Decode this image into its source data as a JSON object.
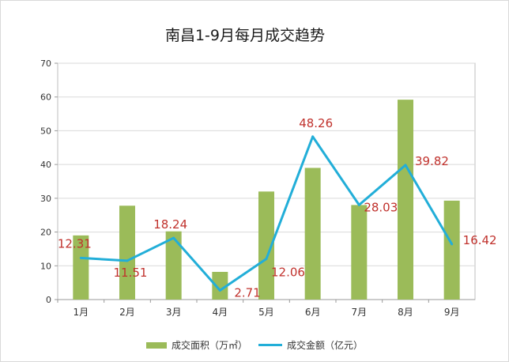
{
  "chart_data": {
    "type": "bar",
    "title": "南昌1-9月每月成交趋势",
    "categories": [
      "1月",
      "2月",
      "3月",
      "4月",
      "5月",
      "6月",
      "7月",
      "8月",
      "9月"
    ],
    "ylim": [
      0,
      70
    ],
    "yticks": [
      "0",
      "10",
      "20",
      "30",
      "40",
      "50",
      "60",
      "70"
    ],
    "grid": true,
    "legend_position": "bottom",
    "series": [
      {
        "name": "成交面积（万㎡）",
        "type": "bar",
        "color": "#9bbb59",
        "values": [
          19,
          27.8,
          20.2,
          8.2,
          32,
          39,
          28,
          59.2,
          29.3
        ]
      },
      {
        "name": "成交金额（亿元）",
        "type": "line",
        "color": "#22aed8",
        "values": [
          12.31,
          11.51,
          18.24,
          2.71,
          12.06,
          48.26,
          28.03,
          39.82,
          16.42
        ],
        "data_labels": [
          "12.31",
          "11.51",
          "18.24",
          "2.71",
          "12.06",
          "48.26",
          "28.03",
          "39.82",
          "16.42"
        ],
        "label_color": "#c0312c"
      }
    ]
  }
}
